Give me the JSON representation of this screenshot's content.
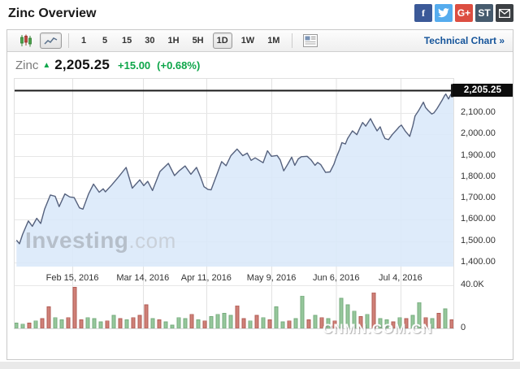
{
  "page": {
    "title": "Zinc Overview"
  },
  "social": {
    "facebook_glyph": "f",
    "gplus_glyph": "G+",
    "stocktwits_glyph": "ST"
  },
  "toolbar": {
    "timeframes": [
      "1",
      "5",
      "15",
      "30",
      "1H",
      "5H",
      "1D",
      "1W",
      "1M"
    ],
    "selected_timeframe": "1D",
    "selected_chart_type": "line",
    "technical_chart_link": "Technical Chart »"
  },
  "quote": {
    "symbol": "Zinc",
    "arrow": "▲",
    "price": "2,205.25",
    "change": "+15.00",
    "change_pct": "(+0.68%)"
  },
  "watermarks": {
    "brand": "Investing",
    "brand_suffix": ".com",
    "bottom_right": "CNMN.COM.CN"
  },
  "chart_data": {
    "type": "area",
    "title": "Zinc 1D continuous price with volume",
    "legend": "none",
    "grid": true,
    "price_axis": {
      "range": [
        1370,
        2263
      ],
      "ticks": [
        {
          "v": 2100,
          "label": "2,100.00"
        },
        {
          "v": 2000,
          "label": "2,000.00"
        },
        {
          "v": 1900,
          "label": "1,900.00"
        },
        {
          "v": 1800,
          "label": "1,800.00"
        },
        {
          "v": 1700,
          "label": "1,700.00"
        },
        {
          "v": 1600,
          "label": "1,600.00"
        },
        {
          "v": 1500,
          "label": "1,500.00"
        },
        {
          "v": 1400,
          "label": "1,400.00"
        }
      ]
    },
    "volume_axis": {
      "range_k": [
        0,
        40
      ],
      "ticks": [
        {
          "v": 40,
          "label": "40.0K"
        },
        {
          "v": 0,
          "label": "0"
        }
      ]
    },
    "xticks": [
      {
        "t": 0.133,
        "label": "Feb 15, 2016"
      },
      {
        "t": 0.293,
        "label": "Mar 14, 2016"
      },
      {
        "t": 0.437,
        "label": "Apr 11, 2016"
      },
      {
        "t": 0.585,
        "label": "May 9, 2016"
      },
      {
        "t": 0.732,
        "label": "Jun 6, 2016"
      },
      {
        "t": 0.878,
        "label": "Jul 4, 2016"
      }
    ],
    "last": {
      "value": 2205.25,
      "label": "2,205.25"
    },
    "price_points": [
      [
        0.006,
        1505
      ],
      [
        0.013,
        1488
      ],
      [
        0.02,
        1532
      ],
      [
        0.033,
        1595
      ],
      [
        0.042,
        1570
      ],
      [
        0.052,
        1607
      ],
      [
        0.061,
        1583
      ],
      [
        0.07,
        1650
      ],
      [
        0.083,
        1716
      ],
      [
        0.094,
        1710
      ],
      [
        0.103,
        1662
      ],
      [
        0.116,
        1721
      ],
      [
        0.127,
        1707
      ],
      [
        0.137,
        1704
      ],
      [
        0.149,
        1656
      ],
      [
        0.157,
        1650
      ],
      [
        0.17,
        1722
      ],
      [
        0.181,
        1767
      ],
      [
        0.194,
        1729
      ],
      [
        0.203,
        1745
      ],
      [
        0.208,
        1731
      ],
      [
        0.222,
        1762
      ],
      [
        0.238,
        1801
      ],
      [
        0.255,
        1845
      ],
      [
        0.269,
        1748
      ],
      [
        0.286,
        1787
      ],
      [
        0.295,
        1760
      ],
      [
        0.304,
        1780
      ],
      [
        0.315,
        1737
      ],
      [
        0.332,
        1826
      ],
      [
        0.351,
        1864
      ],
      [
        0.365,
        1807
      ],
      [
        0.376,
        1830
      ],
      [
        0.389,
        1852
      ],
      [
        0.402,
        1813
      ],
      [
        0.415,
        1845
      ],
      [
        0.424,
        1800
      ],
      [
        0.432,
        1755
      ],
      [
        0.441,
        1742
      ],
      [
        0.448,
        1740
      ],
      [
        0.459,
        1800
      ],
      [
        0.472,
        1872
      ],
      [
        0.482,
        1853
      ],
      [
        0.493,
        1900
      ],
      [
        0.507,
        1931
      ],
      [
        0.52,
        1900
      ],
      [
        0.53,
        1912
      ],
      [
        0.539,
        1878
      ],
      [
        0.548,
        1890
      ],
      [
        0.566,
        1867
      ],
      [
        0.576,
        1923
      ],
      [
        0.585,
        1897
      ],
      [
        0.598,
        1901
      ],
      [
        0.605,
        1880
      ],
      [
        0.613,
        1829
      ],
      [
        0.622,
        1860
      ],
      [
        0.631,
        1893
      ],
      [
        0.638,
        1855
      ],
      [
        0.646,
        1885
      ],
      [
        0.653,
        1895
      ],
      [
        0.666,
        1897
      ],
      [
        0.675,
        1880
      ],
      [
        0.684,
        1855
      ],
      [
        0.69,
        1868
      ],
      [
        0.697,
        1858
      ],
      [
        0.708,
        1822
      ],
      [
        0.718,
        1824
      ],
      [
        0.727,
        1860
      ],
      [
        0.732,
        1890
      ],
      [
        0.74,
        1930
      ],
      [
        0.745,
        1961
      ],
      [
        0.753,
        1955
      ],
      [
        0.758,
        1980
      ],
      [
        0.769,
        2016
      ],
      [
        0.779,
        1998
      ],
      [
        0.786,
        2030
      ],
      [
        0.792,
        2055
      ],
      [
        0.799,
        2038
      ],
      [
        0.81,
        2073
      ],
      [
        0.817,
        2045
      ],
      [
        0.825,
        2016
      ],
      [
        0.832,
        2035
      ],
      [
        0.838,
        2000
      ],
      [
        0.843,
        1980
      ],
      [
        0.851,
        1975
      ],
      [
        0.86,
        2000
      ],
      [
        0.869,
        2020
      ],
      [
        0.875,
        2035
      ],
      [
        0.88,
        2043
      ],
      [
        0.889,
        2015
      ],
      [
        0.899,
        1990
      ],
      [
        0.906,
        2040
      ],
      [
        0.911,
        2085
      ],
      [
        0.919,
        2110
      ],
      [
        0.93,
        2150
      ],
      [
        0.935,
        2125
      ],
      [
        0.941,
        2111
      ],
      [
        0.949,
        2095
      ],
      [
        0.954,
        2100
      ],
      [
        0.961,
        2120
      ],
      [
        0.972,
        2157
      ],
      [
        0.978,
        2180
      ],
      [
        0.981,
        2188
      ],
      [
        0.987,
        2165
      ],
      [
        0.992,
        2185
      ],
      [
        1.0,
        2205.25
      ]
    ],
    "volume_bars_k": [
      [
        5,
        "g"
      ],
      [
        4,
        "g"
      ],
      [
        5,
        "r"
      ],
      [
        7,
        "g"
      ],
      [
        9,
        "r"
      ],
      [
        20,
        "r"
      ],
      [
        10,
        "g"
      ],
      [
        8,
        "g"
      ],
      [
        10,
        "r"
      ],
      [
        38,
        "r"
      ],
      [
        8,
        "r"
      ],
      [
        10,
        "g"
      ],
      [
        9,
        "g"
      ],
      [
        6,
        "g"
      ],
      [
        7,
        "r"
      ],
      [
        12,
        "g"
      ],
      [
        9,
        "r"
      ],
      [
        8,
        "g"
      ],
      [
        10,
        "r"
      ],
      [
        12,
        "r"
      ],
      [
        22,
        "r"
      ],
      [
        9,
        "g"
      ],
      [
        8,
        "r"
      ],
      [
        6,
        "g"
      ],
      [
        3,
        "g"
      ],
      [
        10,
        "g"
      ],
      [
        9,
        "g"
      ],
      [
        13,
        "r"
      ],
      [
        8,
        "g"
      ],
      [
        7,
        "r"
      ],
      [
        11,
        "g"
      ],
      [
        13,
        "g"
      ],
      [
        14,
        "g"
      ],
      [
        12,
        "g"
      ],
      [
        21,
        "r"
      ],
      [
        9,
        "r"
      ],
      [
        7,
        "g"
      ],
      [
        12,
        "r"
      ],
      [
        10,
        "g"
      ],
      [
        8,
        "r"
      ],
      [
        20,
        "g"
      ],
      [
        6,
        "g"
      ],
      [
        7,
        "r"
      ],
      [
        9,
        "g"
      ],
      [
        30,
        "g"
      ],
      [
        8,
        "r"
      ],
      [
        12,
        "g"
      ],
      [
        10,
        "r"
      ],
      [
        9,
        "g"
      ],
      [
        7,
        "r"
      ],
      [
        28,
        "g"
      ],
      [
        22,
        "g"
      ],
      [
        16,
        "g"
      ],
      [
        11,
        "r"
      ],
      [
        13,
        "g"
      ],
      [
        33,
        "r"
      ],
      [
        9,
        "g"
      ],
      [
        8,
        "g"
      ],
      [
        6,
        "r"
      ],
      [
        10,
        "g"
      ],
      [
        9,
        "r"
      ],
      [
        12,
        "g"
      ],
      [
        24,
        "g"
      ],
      [
        10,
        "r"
      ],
      [
        9,
        "g"
      ],
      [
        14,
        "r"
      ],
      [
        18,
        "g"
      ],
      [
        8,
        "r"
      ]
    ],
    "colors": {
      "line": "#55617d",
      "fill": "#d9e8f9",
      "up": "#95c79b",
      "up_edge": "#76ab7c",
      "down": "#cf8077",
      "down_edge": "#b25c55",
      "last_line": "#1a1a1a",
      "grid_h": "#e7e7e7",
      "grid_v": "#e2e2e2"
    }
  }
}
